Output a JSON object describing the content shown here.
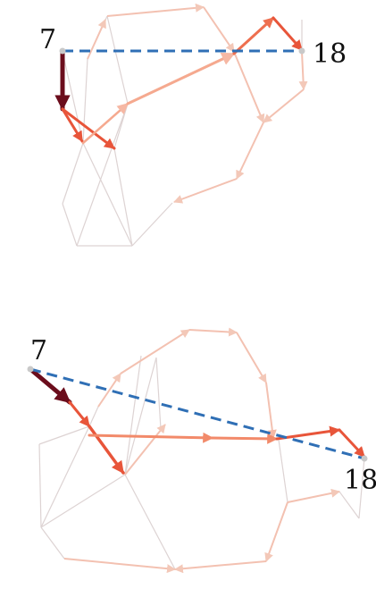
{
  "colors": {
    "background": "#ffffff",
    "graph_edge": "#d9d0d0",
    "path_light": "#f6b8a4",
    "path_mid": "#ee6f4f",
    "path_dark": "#6b0d1c",
    "straight_line": "#2f6fb5",
    "node_fill": "#c9c9c9"
  },
  "panels": [
    {
      "source_label": "7",
      "target_label": "18"
    },
    {
      "source_label": "7",
      "target_label": "18"
    }
  ],
  "icons": {
    "path_arrow": "arrowhead-icon"
  }
}
